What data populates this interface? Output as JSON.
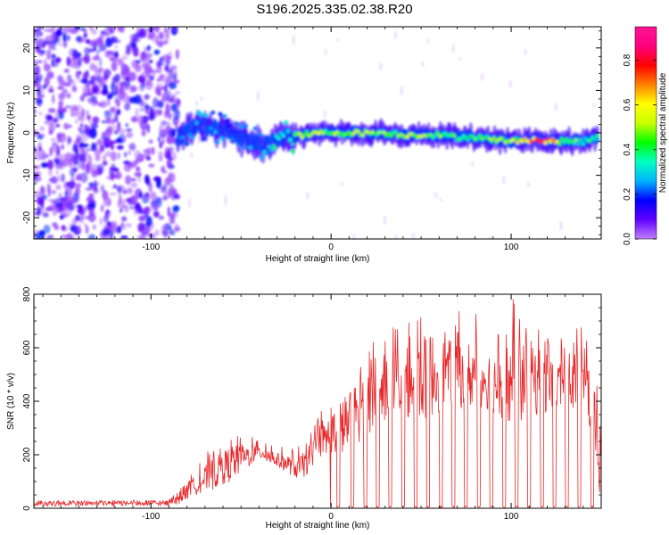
{
  "title": "S196.2025.335.02.38.R20",
  "chart_data": [
    {
      "type": "heatmap",
      "title": "S196.2025.335.02.38.R20",
      "xlabel": "Height of straight line (km)",
      "ylabel": "Frequency (Hz)",
      "xlim": [
        -165,
        150
      ],
      "ylim": [
        -25,
        25
      ],
      "xticks": [
        -100,
        0,
        100
      ],
      "xtick_labels": [
        "-100",
        "0",
        "100"
      ],
      "yticks": [
        20,
        10,
        0,
        -10,
        -20
      ],
      "ytick_labels": [
        "20",
        "10",
        "0",
        "-10",
        "-20"
      ],
      "colorbar": {
        "label": "Normalized spectral amplitude",
        "range": [
          0.0,
          0.95
        ],
        "ticks": [
          0.0,
          0.2,
          0.4,
          0.6,
          0.8
        ],
        "tick_labels": [
          "0.0",
          "0.2",
          "0.4",
          "0.6",
          "0.8"
        ],
        "colormap": [
          "#c080ff",
          "#6000ff",
          "#0000ff",
          "#00b4ff",
          "#00ffc0",
          "#00ff00",
          "#c8ff00",
          "#ffff00",
          "#ff8000",
          "#ff0000",
          "#ff0080",
          "#ff1493"
        ]
      },
      "ridge": {
        "description": "narrow-band signal near 0 Hz",
        "x": [
          -85,
          -75,
          -65,
          -55,
          -45,
          -35,
          -25,
          -15,
          -5,
          0,
          10,
          20,
          30,
          40,
          50,
          60,
          70,
          80,
          90,
          100,
          110,
          120,
          130,
          140,
          148
        ],
        "freq": [
          -1,
          2,
          1,
          0,
          -2,
          -3,
          -1,
          -0.5,
          0,
          0,
          0,
          0,
          0,
          -0.5,
          -0.5,
          -0.5,
          -1,
          -1,
          -1.5,
          -2,
          -1.5,
          -2,
          -2,
          -2,
          -1
        ],
        "amplitude": [
          0.25,
          0.3,
          0.3,
          0.25,
          0.3,
          0.35,
          0.45,
          0.6,
          0.55,
          0.55,
          0.55,
          0.55,
          0.5,
          0.55,
          0.6,
          0.5,
          0.45,
          0.45,
          0.5,
          0.55,
          0.85,
          0.8,
          0.5,
          0.45,
          0.45
        ]
      },
      "noise_region_x": [
        -165,
        -85
      ]
    },
    {
      "type": "line",
      "xlabel": "Height of straight line (km)",
      "ylabel": "SNR (10 * v/v)",
      "xlim": [
        -165,
        150
      ],
      "ylim": [
        0,
        800
      ],
      "xticks": [
        -100,
        0,
        100
      ],
      "xtick_labels": [
        "-100",
        "0",
        "100"
      ],
      "yticks": [
        0,
        200,
        400,
        600,
        800
      ],
      "ytick_labels": [
        "0",
        "200",
        "400",
        "600",
        "800"
      ],
      "color": "#e8282a",
      "series": [
        {
          "name": "SNR",
          "x": [
            -165,
            -140,
            -120,
            -100,
            -90,
            -85,
            -80,
            -75,
            -70,
            -65,
            -60,
            -55,
            -50,
            -45,
            -40,
            -35,
            -30,
            -25,
            -20,
            -15,
            -10,
            -5,
            0,
            5,
            10,
            15,
            20,
            25,
            30,
            35,
            40,
            45,
            50,
            55,
            60,
            65,
            70,
            75,
            80,
            85,
            90,
            95,
            100,
            105,
            110,
            115,
            120,
            125,
            130,
            135,
            140,
            145,
            150
          ],
          "y": [
            20,
            20,
            20,
            20,
            25,
            30,
            60,
            90,
            110,
            130,
            150,
            170,
            180,
            200,
            210,
            200,
            180,
            170,
            150,
            160,
            210,
            240,
            280,
            300,
            330,
            370,
            390,
            420,
            440,
            460,
            470,
            470,
            480,
            500,
            500,
            510,
            520,
            500,
            500,
            490,
            470,
            460,
            460,
            470,
            470,
            480,
            470,
            460,
            470,
            480,
            450,
            400,
            100
          ],
          "envelope": [
            30,
            30,
            30,
            30,
            40,
            60,
            110,
            160,
            200,
            240,
            260,
            300,
            270,
            280,
            250,
            260,
            230,
            230,
            220,
            250,
            300,
            380,
            420,
            500,
            520,
            600,
            620,
            640,
            660,
            680,
            700,
            720,
            760,
            800,
            760,
            720,
            780,
            740,
            740,
            700,
            680,
            700,
            800,
            760,
            700,
            720,
            680,
            640,
            660,
            680,
            700,
            640,
            300
          ],
          "dropouts_x": [
            -1,
            4,
            12,
            19,
            26,
            33,
            40,
            47,
            54,
            61,
            68,
            75,
            82,
            89,
            96,
            103,
            110,
            117,
            124,
            131,
            138,
            145
          ]
        }
      ]
    }
  ]
}
